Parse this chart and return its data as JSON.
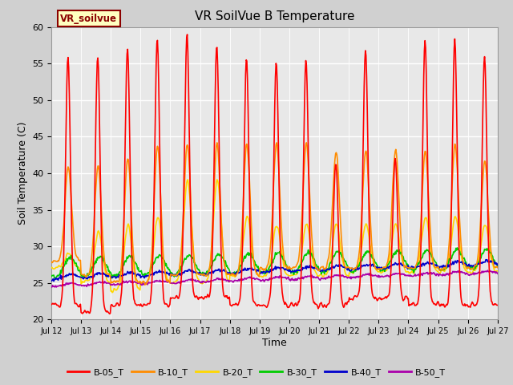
{
  "title": "VR SoilVue B Temperature",
  "xlabel": "Time",
  "ylabel": "Soil Temperature (C)",
  "xlim": [
    0,
    15
  ],
  "ylim": [
    20,
    60
  ],
  "yticks": [
    20,
    25,
    30,
    35,
    40,
    45,
    50,
    55,
    60
  ],
  "xtick_labels": [
    "Jul 12",
    "Jul 13",
    "Jul 14",
    "Jul 15",
    "Jul 16",
    "Jul 17",
    "Jul 18",
    "Jul 19",
    "Jul 20",
    "Jul 21",
    "Jul 22",
    "Jul 23",
    "Jul 24",
    "Jul 25",
    "Jul 26",
    "Jul 27"
  ],
  "fig_bg_color": "#d0d0d0",
  "plot_bg_color": "#e8e8e8",
  "legend_label": "VR_soilvue",
  "legend_box_color": "#ffffc0",
  "legend_box_border": "#8b0000",
  "series_colors": {
    "B-05_T": "#ff0000",
    "B-10_T": "#ff8c00",
    "B-20_T": "#ffd700",
    "B-30_T": "#00cc00",
    "B-40_T": "#0000cc",
    "B-50_T": "#aa00aa"
  },
  "line_width": 1.2
}
